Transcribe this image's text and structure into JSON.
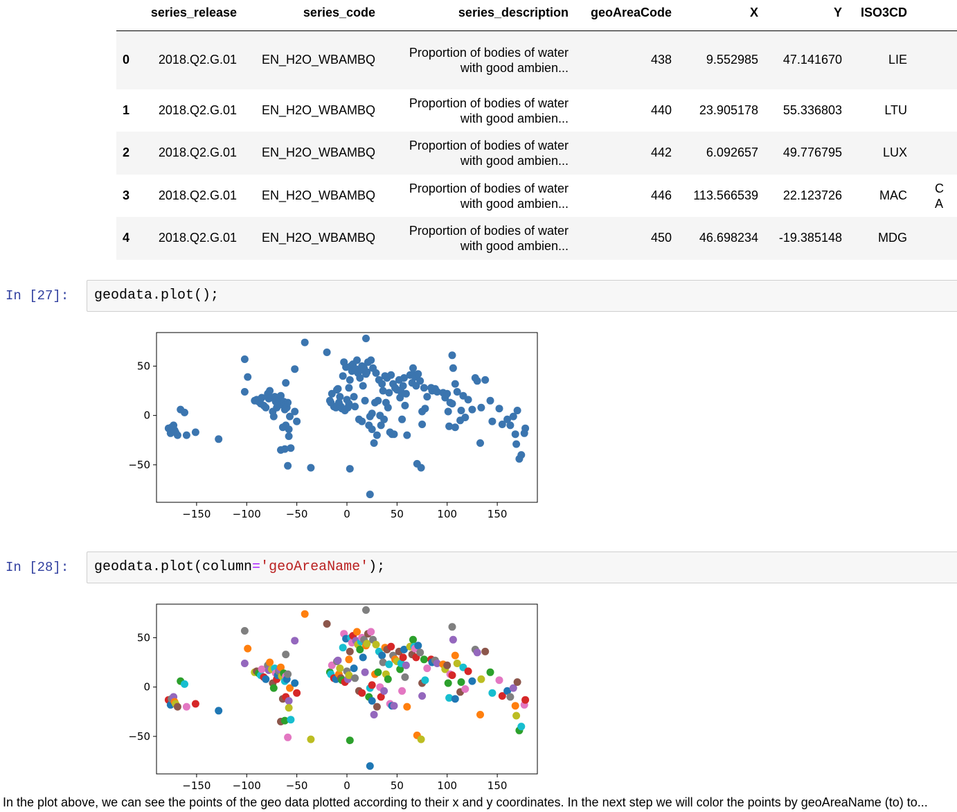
{
  "table": {
    "headers": [
      "series_release",
      "series_code",
      "series_description",
      "geoAreaCode",
      "X",
      "Y",
      "ISO3CD"
    ],
    "rows": [
      {
        "idx": "0",
        "release": "2018.Q2.G.01",
        "code": "EN_H2O_WBAMBQ",
        "desc1": "Proportion of bodies of water",
        "desc2": "with good ambien...",
        "geo": "438",
        "x": "9.552985",
        "y": "47.141670",
        "iso": "LIE",
        "extra1": "",
        "extra2": ""
      },
      {
        "idx": "1",
        "release": "2018.Q2.G.01",
        "code": "EN_H2O_WBAMBQ",
        "desc1": "Proportion of bodies of water",
        "desc2": "with good ambien...",
        "geo": "440",
        "x": "23.905178",
        "y": "55.336803",
        "iso": "LTU",
        "extra1": "",
        "extra2": ""
      },
      {
        "idx": "2",
        "release": "2018.Q2.G.01",
        "code": "EN_H2O_WBAMBQ",
        "desc1": "Proportion of bodies of water",
        "desc2": "with good ambien...",
        "geo": "442",
        "x": "6.092657",
        "y": "49.776795",
        "iso": "LUX",
        "extra1": "",
        "extra2": ""
      },
      {
        "idx": "3",
        "release": "2018.Q2.G.01",
        "code": "EN_H2O_WBAMBQ",
        "desc1": "Proportion of bodies of water",
        "desc2": "with good ambien...",
        "geo": "446",
        "x": "113.566539",
        "y": "22.123726",
        "iso": "MAC",
        "extra1": "C",
        "extra2": "A"
      },
      {
        "idx": "4",
        "release": "2018.Q2.G.01",
        "code": "EN_H2O_WBAMBQ",
        "desc1": "Proportion of bodies of water",
        "desc2": "with good ambien...",
        "geo": "450",
        "x": "46.698234",
        "y": "-19.385148",
        "iso": "MDG",
        "extra1": "",
        "extra2": ""
      }
    ]
  },
  "cells": [
    {
      "prompt": "In [27]:",
      "code_before": "geodata.plot();",
      "code_op": "",
      "code_str": "",
      "code_after": ""
    },
    {
      "prompt": "In [28]:",
      "code_before": "geodata.plot(column",
      "code_op": "=",
      "code_str": "'geoAreaName'",
      "code_after": ");"
    }
  ],
  "caption": "In the plot above, we can see the points of the geo data plotted according to their x and y coordinates. In the next step we will color the points by geoAreaName (to) to...",
  "chart_data": [
    {
      "type": "scatter",
      "title": "",
      "xlabel": "",
      "ylabel": "",
      "xlim": [
        -190,
        190
      ],
      "ylim": [
        -88,
        84
      ],
      "xticks": [
        -150,
        -100,
        -50,
        0,
        50,
        100,
        150
      ],
      "yticks": [
        -50,
        0,
        50
      ],
      "color": "#3b75af",
      "points": [
        [
          -178,
          -13
        ],
        [
          -176,
          -18
        ],
        [
          -175,
          -12
        ],
        [
          -173,
          -10
        ],
        [
          -172,
          -15
        ],
        [
          -171,
          -17
        ],
        [
          -169,
          -20
        ],
        [
          -166,
          6
        ],
        [
          -162,
          3
        ],
        [
          -160,
          -20
        ],
        [
          -151,
          -17
        ],
        [
          -128,
          -24
        ],
        [
          -102,
          57
        ],
        [
          -102,
          24
        ],
        [
          -99,
          39
        ],
        [
          -92,
          15
        ],
        [
          -90,
          16
        ],
        [
          -88,
          14
        ],
        [
          -86,
          12
        ],
        [
          -85,
          18
        ],
        [
          -83,
          10
        ],
        [
          -81,
          8
        ],
        [
          -79,
          22
        ],
        [
          -78,
          17
        ],
        [
          -77,
          25
        ],
        [
          -75,
          18
        ],
        [
          -74,
          4
        ],
        [
          -73,
          -1
        ],
        [
          -72,
          19
        ],
        [
          -71,
          14
        ],
        [
          -70,
          8
        ],
        [
          -69,
          12
        ],
        [
          -68,
          16
        ],
        [
          -67,
          18
        ],
        [
          -66,
          20
        ],
        [
          -65,
          11
        ],
        [
          -64,
          -12
        ],
        [
          -63,
          14
        ],
        [
          -62,
          6
        ],
        [
          -61,
          11
        ],
        [
          -61,
          -10
        ],
        [
          -60,
          8
        ],
        [
          -59,
          13
        ],
        [
          -58,
          -14
        ],
        [
          -57,
          -1
        ],
        [
          -58,
          -21
        ],
        [
          -66,
          -35
        ],
        [
          -62,
          -34
        ],
        [
          -56,
          -33
        ],
        [
          -59,
          -51
        ],
        [
          -50,
          -6
        ],
        [
          -52,
          4
        ],
        [
          -61,
          33
        ],
        [
          -52,
          47
        ],
        [
          -42,
          74
        ],
        [
          -36,
          -53
        ],
        [
          -20,
          64
        ],
        [
          -17,
          15
        ],
        [
          -16,
          13
        ],
        [
          -15,
          22
        ],
        [
          -13,
          9
        ],
        [
          -11,
          8
        ],
        [
          -10,
          26
        ],
        [
          -9,
          27
        ],
        [
          -8,
          13
        ],
        [
          -7,
          19
        ],
        [
          -6,
          9
        ],
        [
          -5,
          7
        ],
        [
          -4,
          40
        ],
        [
          -3,
          54
        ],
        [
          -2,
          5
        ],
        [
          -1,
          49
        ],
        [
          0,
          16
        ],
        [
          1,
          8
        ],
        [
          2,
          28
        ],
        [
          2,
          12
        ],
        [
          3,
          36
        ],
        [
          3,
          -54
        ],
        [
          4,
          50
        ],
        [
          5,
          45
        ],
        [
          6,
          52
        ],
        [
          7,
          19
        ],
        [
          8,
          9
        ],
        [
          9,
          47
        ],
        [
          10,
          56
        ],
        [
          11,
          43
        ],
        [
          12,
          -4
        ],
        [
          13,
          38
        ],
        [
          14,
          46
        ],
        [
          15,
          50
        ],
        [
          15,
          -6
        ],
        [
          16,
          30
        ],
        [
          17,
          48
        ],
        [
          18,
          15
        ],
        [
          19,
          42
        ],
        [
          20,
          44
        ],
        [
          21,
          54
        ],
        [
          22,
          -10
        ],
        [
          23,
          -1
        ],
        [
          24,
          56
        ],
        [
          25,
          2
        ],
        [
          25,
          -14
        ],
        [
          26,
          48
        ],
        [
          27,
          -28
        ],
        [
          28,
          13
        ],
        [
          29,
          43
        ],
        [
          30,
          -20
        ],
        [
          31,
          15
        ],
        [
          32,
          36
        ],
        [
          33,
          0
        ],
        [
          34,
          -10
        ],
        [
          35,
          32
        ],
        [
          36,
          25
        ],
        [
          37,
          -4
        ],
        [
          38,
          40
        ],
        [
          39,
          13
        ],
        [
          40,
          38
        ],
        [
          41,
          8
        ],
        [
          42,
          23
        ],
        [
          43,
          -17
        ],
        [
          44,
          41
        ],
        [
          45,
          -19
        ],
        [
          46,
          32
        ],
        [
          47,
          -19
        ],
        [
          48,
          28
        ],
        [
          50,
          26
        ],
        [
          52,
          36
        ],
        [
          53,
          18
        ],
        [
          54,
          24
        ],
        [
          55,
          -4
        ],
        [
          56,
          30
        ],
        [
          57,
          38
        ],
        [
          58,
          10
        ],
        [
          59,
          22
        ],
        [
          60,
          -20
        ],
        [
          63,
          41
        ],
        [
          65,
          33
        ],
        [
          66,
          48
        ],
        [
          67,
          41
        ],
        [
          68,
          39
        ],
        [
          69,
          30
        ],
        [
          71,
          42
        ],
        [
          73,
          35
        ],
        [
          75,
          -9
        ],
        [
          70,
          -49
        ],
        [
          74,
          -53
        ],
        [
          75,
          4
        ],
        [
          77,
          28
        ],
        [
          78,
          7
        ],
        [
          80,
          19
        ],
        [
          84,
          28
        ],
        [
          85,
          25
        ],
        [
          88,
          27
        ],
        [
          90,
          24
        ],
        [
          96,
          23
        ],
        [
          98,
          18
        ],
        [
          100,
          22
        ],
        [
          101,
          4
        ],
        [
          102,
          -11
        ],
        [
          103,
          13
        ],
        [
          105,
          12
        ],
        [
          108,
          -12
        ],
        [
          105,
          61
        ],
        [
          106,
          48
        ],
        [
          108,
          32
        ],
        [
          110,
          24
        ],
        [
          113,
          -5
        ],
        [
          114,
          5
        ],
        [
          116,
          20
        ],
        [
          118,
          -2
        ],
        [
          121,
          16
        ],
        [
          125,
          6
        ],
        [
          128,
          38
        ],
        [
          130,
          35
        ],
        [
          133,
          -28
        ],
        [
          134,
          8
        ],
        [
          138,
          36
        ],
        [
          143,
          15
        ],
        [
          145,
          -6
        ],
        [
          152,
          7
        ],
        [
          155,
          -9
        ],
        [
          160,
          -4
        ],
        [
          163,
          -10
        ],
        [
          166,
          -1
        ],
        [
          168,
          -19
        ],
        [
          169,
          -29
        ],
        [
          170,
          5
        ],
        [
          172,
          -44
        ],
        [
          174,
          -40
        ],
        [
          177,
          -18
        ],
        [
          178,
          -13
        ],
        [
          23,
          -80
        ],
        [
          19,
          78
        ]
      ]
    },
    {
      "type": "scatter",
      "title": "",
      "xlabel": "",
      "ylabel": "",
      "xlim": [
        -190,
        190
      ],
      "ylim": [
        -88,
        84
      ],
      "xticks": [
        -150,
        -100,
        -50,
        0,
        50,
        100,
        150
      ],
      "yticks": [
        -50,
        0,
        50
      ],
      "colored_by": "geoAreaName",
      "palette": [
        "#1f77b4",
        "#ff7f0e",
        "#2ca02c",
        "#d62728",
        "#9467bd",
        "#8c564b",
        "#e377c2",
        "#7f7f7f",
        "#bcbd22",
        "#17becf"
      ]
    }
  ]
}
